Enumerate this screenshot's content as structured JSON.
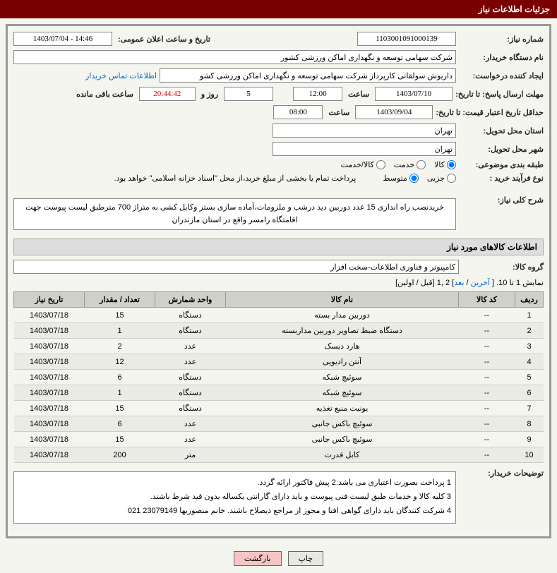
{
  "header": {
    "title": "جزئیات اطلاعات نیاز"
  },
  "info": {
    "need_number_label": "شماره نیاز:",
    "need_number": "1103001091000139",
    "announce_label": "تاریخ و ساعت اعلان عمومی:",
    "announce_value": "1403/07/04 - 14:46",
    "buyer_org_label": "نام دستگاه خریدار:",
    "buyer_org": "شرکت سهامی توسعه و نگهداری اماکن ورزشی کشور",
    "creator_label": "ایجاد کننده درخواست:",
    "creator": "داریوش سولقانی کارپرداز شرکت سهامی توسعه و نگهداری اماکن ورزشی کشو",
    "contact_link": "اطلاعات تماس خریدار",
    "deadline_label": "مهلت ارسال پاسخ: تا تاریخ:",
    "deadline_date": "1403/07/10",
    "hour_label": "ساعت",
    "deadline_time": "12:00",
    "days_suffix": "روز و",
    "days_value": "5",
    "countdown": "20:44:42",
    "remaining_label": "ساعت باقی مانده",
    "validity_label": "حداقل تاریخ اعتبار قیمت: تا تاریخ:",
    "validity_date": "1403/09/04",
    "validity_time": "08:00",
    "province_label": "استان محل تحویل:",
    "province": "تهران",
    "city_label": "شهر محل تحویل:",
    "city": "تهران",
    "category_label": "طبقه بندی موضوعی:",
    "cat_goods": "کالا",
    "cat_service": "خدمت",
    "cat_both": "کالا/خدمت",
    "process_label": "نوع فرآیند خرید :",
    "proc_partial": "جزیی",
    "proc_medium": "متوسط",
    "payment_note": "پرداخت تمام یا بخشی از مبلغ خرید،از محل \"اسناد خزانه اسلامی\" خواهد بود.",
    "desc_label": "شرح کلی نیاز:",
    "desc_text": "خریدنصب راه اندازی 15 عدد دوربین دید درشب و ملزومات،آماده سازی بستر وکابل کشی به متراژ 700 مترطبق لیست پیوست جهت اقامتگاه رامسر واقع در استان مازندران"
  },
  "goods_section": {
    "title": "اطلاعات کالاهای مورد نیاز",
    "group_label": "گروه کالا:",
    "group_value": "کامپیوتر و فناوری اطلاعات-سخت افزار",
    "pager_text": "نمایش 1 تا 10. [",
    "pager_last": " آخرین",
    "pager_sep": " / ",
    "pager_next": "بعد",
    "pager_nums": "] 2 ,1 [",
    "pager_prev": "قبل / اولین",
    "pager_close": "]",
    "columns": [
      "ردیف",
      "کد کالا",
      "نام کالا",
      "واحد شمارش",
      "تعداد / مقدار",
      "تاریخ نیاز"
    ],
    "rows": [
      {
        "n": "1",
        "code": "--",
        "name": "دوربین مدار بسته",
        "unit": "دستگاه",
        "qty": "15",
        "date": "1403/07/18"
      },
      {
        "n": "2",
        "code": "--",
        "name": "دستگاه ضبط تصاویر دوربین مداربسته",
        "unit": "دستگاه",
        "qty": "1",
        "date": "1403/07/18"
      },
      {
        "n": "3",
        "code": "--",
        "name": "هارد دیسک",
        "unit": "عدد",
        "qty": "2",
        "date": "1403/07/18"
      },
      {
        "n": "4",
        "code": "--",
        "name": "آنتن رادیویی",
        "unit": "عدد",
        "qty": "12",
        "date": "1403/07/18"
      },
      {
        "n": "5",
        "code": "--",
        "name": "سوئیچ شبکه",
        "unit": "دستگاه",
        "qty": "6",
        "date": "1403/07/18"
      },
      {
        "n": "6",
        "code": "--",
        "name": "سوئیچ شبکه",
        "unit": "دستگاه",
        "qty": "1",
        "date": "1403/07/18"
      },
      {
        "n": "7",
        "code": "--",
        "name": "یونیت منبع تغذیه",
        "unit": "دستگاه",
        "qty": "15",
        "date": "1403/07/18"
      },
      {
        "n": "8",
        "code": "--",
        "name": "سوئیچ باکس جانبی",
        "unit": "عدد",
        "qty": "6",
        "date": "1403/07/18"
      },
      {
        "n": "9",
        "code": "--",
        "name": "سوئیچ باکس جانبی",
        "unit": "عدد",
        "qty": "15",
        "date": "1403/07/18"
      },
      {
        "n": "10",
        "code": "--",
        "name": "کابل قدرت",
        "unit": "متر",
        "qty": "200",
        "date": "1403/07/18"
      }
    ]
  },
  "notes": {
    "label": "توضیحات خریدار:",
    "line1": "1 پرداخت بصورت اعتباری می باشد.2 پیش فاکتور ارائه گردد.",
    "line2": "3 کلیه کالا و خدمات طبق لیست فنی پیوست و باید دارای گارانتی یکساله بدون قید شرط باشند.",
    "line3": "4 شرکت کنندگان باید دارای گواهی افتا و مجوز از مراجع ذیصلاح باشند. خانم منصوریها  23079149  021"
  },
  "buttons": {
    "print": "چاپ",
    "back": "بازگشت"
  }
}
